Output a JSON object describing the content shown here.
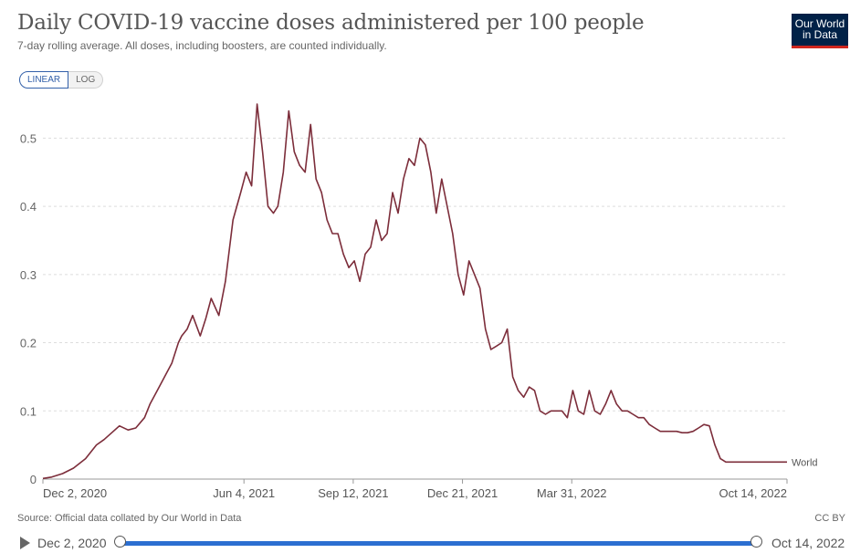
{
  "header": {
    "title": "Daily COVID-19 vaccine doses administered per 100 people",
    "subtitle": "7-day rolling average. All doses, including boosters, are counted individually.",
    "logo_line1": "Our World",
    "logo_line2": "in Data"
  },
  "scale_toggle": {
    "linear_label": "LINEAR",
    "log_label": "LOG",
    "selected": "LINEAR"
  },
  "footer": {
    "source": "Source: Official data collated by Our World in Data",
    "license": "CC BY"
  },
  "timeline": {
    "start_label": "Dec 2, 2020",
    "end_label": "Oct 14, 2022"
  },
  "colors": {
    "line": "#7c2d3a",
    "grid": "#dddddd",
    "slider": "#2c6fd1",
    "logo_bg": "#002147",
    "logo_accent": "#ce261e"
  },
  "chart_data": {
    "type": "line",
    "title": "Daily COVID-19 vaccine doses administered per 100 people",
    "subtitle": "7-day rolling average. All doses, including boosters, are counted individually.",
    "xlabel": "",
    "ylabel": "",
    "ylim": [
      0,
      0.55
    ],
    "yticks": [
      0,
      0.1,
      0.2,
      0.3,
      0.4,
      0.5
    ],
    "ytick_labels": [
      "0",
      "0.1",
      "0.2",
      "0.3",
      "0.4",
      "0.5"
    ],
    "xticks": [
      "2020-12-02",
      "2021-06-04",
      "2021-09-12",
      "2021-12-21",
      "2022-03-31",
      "2022-10-14"
    ],
    "xtick_labels": [
      "Dec 2, 2020",
      "Jun 4, 2021",
      "Sep 12, 2021",
      "Dec 21, 2021",
      "Mar 31, 2022",
      "Oct 14, 2022"
    ],
    "xlim": [
      "2020-12-02",
      "2022-10-14"
    ],
    "grid": true,
    "series": [
      {
        "name": "World",
        "x": [
          "2020-12-02",
          "2020-12-10",
          "2020-12-20",
          "2020-12-30",
          "2021-01-10",
          "2021-01-20",
          "2021-01-27",
          "2021-02-03",
          "2021-02-10",
          "2021-02-18",
          "2021-02-25",
          "2021-03-05",
          "2021-03-10",
          "2021-03-15",
          "2021-03-20",
          "2021-03-25",
          "2021-03-30",
          "2021-04-05",
          "2021-04-08",
          "2021-04-13",
          "2021-04-18",
          "2021-04-25",
          "2021-04-30",
          "2021-05-05",
          "2021-05-12",
          "2021-05-18",
          "2021-05-25",
          "2021-06-01",
          "2021-06-06",
          "2021-06-11",
          "2021-06-16",
          "2021-06-21",
          "2021-06-26",
          "2021-07-01",
          "2021-07-05",
          "2021-07-10",
          "2021-07-15",
          "2021-07-20",
          "2021-07-25",
          "2021-07-30",
          "2021-08-04",
          "2021-08-09",
          "2021-08-14",
          "2021-08-19",
          "2021-08-24",
          "2021-08-29",
          "2021-09-03",
          "2021-09-08",
          "2021-09-13",
          "2021-09-18",
          "2021-09-23",
          "2021-09-28",
          "2021-10-03",
          "2021-10-08",
          "2021-10-13",
          "2021-10-18",
          "2021-10-23",
          "2021-10-28",
          "2021-11-02",
          "2021-11-07",
          "2021-11-12",
          "2021-11-17",
          "2021-11-22",
          "2021-11-27",
          "2021-12-02",
          "2021-12-07",
          "2021-12-12",
          "2021-12-17",
          "2021-12-22",
          "2021-12-27",
          "2022-01-01",
          "2022-01-06",
          "2022-01-11",
          "2022-01-16",
          "2022-01-21",
          "2022-01-26",
          "2022-01-31",
          "2022-02-05",
          "2022-02-10",
          "2022-02-15",
          "2022-02-20",
          "2022-02-25",
          "2022-03-02",
          "2022-03-07",
          "2022-03-12",
          "2022-03-17",
          "2022-03-22",
          "2022-03-27",
          "2022-04-01",
          "2022-04-06",
          "2022-04-11",
          "2022-04-16",
          "2022-04-21",
          "2022-04-26",
          "2022-05-01",
          "2022-05-06",
          "2022-05-11",
          "2022-05-16",
          "2022-05-21",
          "2022-05-26",
          "2022-05-31",
          "2022-06-05",
          "2022-06-10",
          "2022-06-15",
          "2022-06-20",
          "2022-06-25",
          "2022-06-30",
          "2022-07-05",
          "2022-07-10",
          "2022-07-15",
          "2022-07-20",
          "2022-07-25",
          "2022-07-30",
          "2022-08-04",
          "2022-08-09",
          "2022-08-14",
          "2022-08-19",
          "2022-08-24",
          "2022-08-29",
          "2022-09-03",
          "2022-09-08",
          "2022-09-13",
          "2022-09-18",
          "2022-09-23",
          "2022-09-28",
          "2022-10-03",
          "2022-10-08",
          "2022-10-14"
        ],
        "y": [
          0.001,
          0.003,
          0.008,
          0.016,
          0.03,
          0.05,
          0.058,
          0.068,
          0.078,
          0.072,
          0.075,
          0.09,
          0.11,
          0.125,
          0.14,
          0.155,
          0.17,
          0.2,
          0.21,
          0.22,
          0.24,
          0.21,
          0.235,
          0.265,
          0.24,
          0.29,
          0.38,
          0.42,
          0.45,
          0.43,
          0.55,
          0.48,
          0.4,
          0.39,
          0.4,
          0.45,
          0.54,
          0.48,
          0.46,
          0.45,
          0.52,
          0.44,
          0.42,
          0.38,
          0.36,
          0.36,
          0.33,
          0.31,
          0.32,
          0.29,
          0.33,
          0.34,
          0.38,
          0.35,
          0.36,
          0.42,
          0.39,
          0.44,
          0.47,
          0.46,
          0.5,
          0.49,
          0.45,
          0.39,
          0.44,
          0.4,
          0.36,
          0.3,
          0.27,
          0.32,
          0.3,
          0.28,
          0.22,
          0.19,
          0.195,
          0.2,
          0.22,
          0.15,
          0.13,
          0.12,
          0.135,
          0.13,
          0.1,
          0.095,
          0.1,
          0.1,
          0.1,
          0.09,
          0.13,
          0.1,
          0.095,
          0.13,
          0.1,
          0.095,
          0.11,
          0.13,
          0.11,
          0.1,
          0.1,
          0.095,
          0.09,
          0.09,
          0.08,
          0.075,
          0.07,
          0.07,
          0.07,
          0.07,
          0.068,
          0.068,
          0.07,
          0.075,
          0.08,
          0.078,
          0.05,
          0.03,
          0.025,
          0.025,
          0.025,
          0.025,
          0.025,
          0.025,
          0.025,
          0.025,
          0.025,
          0.025,
          0.025,
          0.025
        ]
      }
    ]
  }
}
